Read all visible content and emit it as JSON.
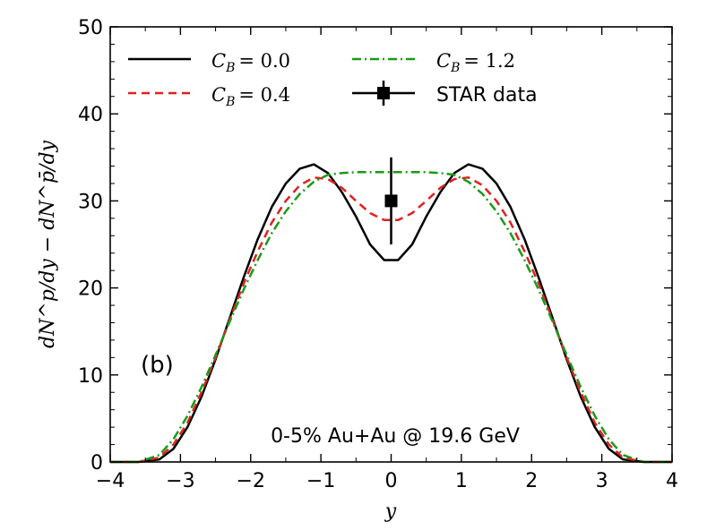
{
  "chart_data": {
    "type": "line",
    "xlabel": "y",
    "ylabel": "dN^p/dy − dN^p̄/dy",
    "xlim": [
      -4,
      4
    ],
    "ylim": [
      0,
      50
    ],
    "xticks": [
      -4,
      -3,
      -2,
      -1,
      0,
      1,
      2,
      3,
      4
    ],
    "yticks": [
      0,
      10,
      20,
      30,
      40,
      50
    ],
    "xtick_labels": [
      "−4",
      "−3",
      "−2",
      "−1",
      "0",
      "1",
      "2",
      "3",
      "4"
    ],
    "ytick_labels": [
      "0",
      "10",
      "20",
      "30",
      "40",
      "50"
    ],
    "grid": false,
    "legend_position": "top",
    "panel_label": "(b)",
    "annotation": "0-5% Au+Au @ 19.6 GeV",
    "series": [
      {
        "name": "C_B = 0.0",
        "label_sub": "B",
        "label_value": "= 0.0",
        "color": "#000000",
        "style": "solid",
        "x": [
          -4.0,
          -3.6,
          -3.3,
          -3.1,
          -2.9,
          -2.7,
          -2.5,
          -2.3,
          -2.1,
          -1.9,
          -1.7,
          -1.5,
          -1.3,
          -1.1,
          -0.9,
          -0.7,
          -0.5,
          -0.3,
          -0.1,
          0.1,
          0.3,
          0.5,
          0.7,
          0.9,
          1.1,
          1.3,
          1.5,
          1.7,
          1.9,
          2.1,
          2.3,
          2.5,
          2.7,
          2.9,
          3.1,
          3.3,
          3.6,
          4.0
        ],
        "y": [
          0.0,
          0.0,
          0.3,
          1.5,
          4.0,
          7.5,
          11.8,
          16.5,
          21.2,
          25.6,
          29.3,
          32.0,
          33.7,
          34.2,
          33.2,
          31.0,
          28.2,
          25.0,
          23.2,
          23.2,
          25.0,
          28.2,
          31.0,
          33.2,
          34.2,
          33.7,
          32.0,
          29.3,
          25.6,
          21.2,
          16.5,
          11.8,
          7.5,
          4.0,
          1.5,
          0.3,
          0.0,
          0.0
        ]
      },
      {
        "name": "C_B = 0.4",
        "label_sub": "B",
        "label_value": "= 0.4",
        "color": "#e0211f",
        "style": "dashed",
        "x": [
          -4.0,
          -3.6,
          -3.3,
          -3.1,
          -2.9,
          -2.7,
          -2.5,
          -2.3,
          -2.1,
          -1.9,
          -1.7,
          -1.5,
          -1.3,
          -1.1,
          -0.9,
          -0.7,
          -0.5,
          -0.3,
          -0.1,
          0.1,
          0.3,
          0.5,
          0.7,
          0.9,
          1.1,
          1.3,
          1.5,
          1.7,
          1.9,
          2.1,
          2.3,
          2.5,
          2.7,
          2.9,
          3.1,
          3.3,
          3.6,
          4.0
        ],
        "y": [
          0.0,
          0.0,
          0.5,
          2.0,
          4.5,
          8.0,
          12.0,
          16.3,
          20.5,
          24.2,
          27.5,
          30.0,
          31.8,
          32.7,
          32.5,
          31.5,
          30.0,
          28.6,
          27.8,
          27.8,
          28.6,
          30.0,
          31.5,
          32.5,
          32.7,
          31.8,
          30.0,
          27.5,
          24.2,
          20.5,
          16.3,
          12.0,
          8.0,
          4.5,
          2.0,
          0.5,
          0.0,
          0.0
        ]
      },
      {
        "name": "C_B = 1.2",
        "label_sub": "B",
        "label_value": "= 1.2",
        "color": "#1a9a1a",
        "style": "dashdot",
        "x": [
          -4.0,
          -3.6,
          -3.3,
          -3.1,
          -2.9,
          -2.7,
          -2.5,
          -2.3,
          -2.1,
          -1.9,
          -1.7,
          -1.5,
          -1.3,
          -1.1,
          -0.9,
          -0.7,
          -0.5,
          -0.3,
          -0.1,
          0.1,
          0.3,
          0.5,
          0.7,
          0.9,
          1.1,
          1.3,
          1.5,
          1.7,
          1.9,
          2.1,
          2.3,
          2.5,
          2.7,
          2.9,
          3.1,
          3.3,
          3.6,
          4.0
        ],
        "y": [
          0.0,
          0.0,
          0.8,
          2.6,
          5.3,
          8.6,
          12.3,
          16.1,
          19.8,
          23.2,
          26.3,
          28.8,
          30.8,
          32.2,
          33.0,
          33.2,
          33.3,
          33.3,
          33.3,
          33.3,
          33.3,
          33.3,
          33.2,
          33.0,
          32.2,
          30.8,
          28.8,
          26.3,
          23.2,
          19.8,
          16.1,
          12.3,
          8.6,
          5.3,
          2.6,
          0.8,
          0.0,
          0.0
        ]
      }
    ],
    "data_points": [
      {
        "name": "STAR data",
        "x": 0.0,
        "y": 30.0,
        "yerr_low": 25.0,
        "yerr_high": 35.0,
        "color": "#000000",
        "marker": "square"
      }
    ]
  }
}
